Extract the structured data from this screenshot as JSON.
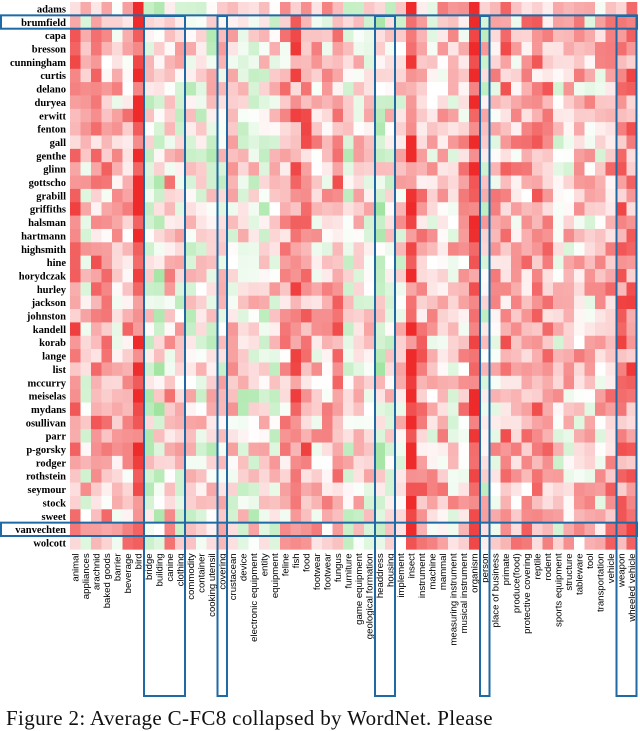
{
  "chart_data": {
    "type": "heatmap",
    "title": "Average C-FC8 collapsed by WordNet",
    "rows": [
      "adams",
      "brumfield",
      "capa",
      "bresson",
      "cunningham",
      "curtis",
      "delano",
      "duryea",
      "erwitt",
      "fenton",
      "gall",
      "genthe",
      "glinn",
      "gottscho",
      "grabill",
      "griffiths",
      "halsman",
      "hartmann",
      "highsmith",
      "hine",
      "horydczak",
      "hurley",
      "jackson",
      "johnston",
      "kandell",
      "korab",
      "lange",
      "list",
      "mccurry",
      "meiselas",
      "mydans",
      "osullivan",
      "parr",
      "p-gorsky",
      "rodger",
      "rothstein",
      "seymour",
      "stock",
      "sweet",
      "vanvechten",
      "wolcott"
    ],
    "columns": [
      "animal",
      "appliances",
      "arachnid",
      "baked goods",
      "barrier",
      "beverage",
      "bird",
      "bridge",
      "building",
      "canine",
      "clothing",
      "commodity",
      "container",
      "cooking utensil",
      "covering",
      "crustacean",
      "device",
      "electronic equipment",
      "entity",
      "equipment",
      "feline",
      "fish",
      "food",
      "footwear",
      "footwear",
      "fungus",
      "furniture",
      "game equipment",
      "geological formation",
      "headdress",
      "housing",
      "implement",
      "insect",
      "instrument",
      "machine",
      "mammal",
      "measuring instrument",
      "musical instrument",
      "organism",
      "person",
      "place of business",
      "primate",
      "produce(food)",
      "protective covering",
      "reptile",
      "rodent",
      "sports equipment",
      "structure",
      "tableware",
      "tool",
      "transportation",
      "vehicle",
      "weapon",
      "wheeled vehicle"
    ],
    "color_scale": {
      "low_color": "#27c227",
      "mid_color": "#ffffff",
      "high_color": "#ee2a2a",
      "range": [
        -1,
        1
      ]
    },
    "column_bias": [
      0.55,
      0.15,
      0.45,
      0.35,
      0.25,
      0.35,
      0.8,
      -0.05,
      -0.05,
      0.3,
      0.1,
      0.05,
      0.05,
      0.05,
      0.1,
      0.15,
      0.05,
      0.05,
      0.05,
      0.1,
      0.3,
      0.55,
      0.5,
      0.25,
      0.25,
      0.45,
      0.05,
      0.1,
      0.15,
      -0.05,
      0.1,
      0.15,
      0.75,
      0.45,
      0.2,
      0.3,
      0.2,
      0.3,
      0.75,
      0.1,
      0.25,
      0.45,
      0.3,
      0.4,
      0.45,
      0.45,
      0.15,
      0.2,
      0.25,
      0.2,
      0.2,
      0.4,
      0.55,
      0.55
    ],
    "highlighted_rows": [
      "brumfield",
      "vanvechten"
    ],
    "highlighted_columns": [
      "bridge",
      "building",
      "canine",
      "clothing",
      "covering",
      "headdress",
      "housing",
      "person",
      "weapon",
      "wheeled vehicle"
    ]
  },
  "caption": "Figure 2: Average C-FC8 collapsed by WordNet. Please"
}
